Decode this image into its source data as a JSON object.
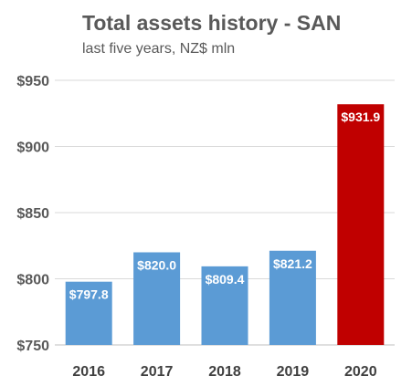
{
  "chart_data": {
    "type": "bar",
    "title": "Total assets history - SAN",
    "subtitle": "last five years, NZ$ mln",
    "categories": [
      "2016",
      "2017",
      "2018",
      "2019",
      "2020"
    ],
    "values": [
      797.8,
      820.0,
      809.4,
      821.2,
      931.9
    ],
    "data_labels": [
      "$797.8",
      "$820.0",
      "$809.4",
      "$821.2",
      "$931.9"
    ],
    "bar_colors": [
      "#5B9BD5",
      "#5B9BD5",
      "#5B9BD5",
      "#5B9BD5",
      "#C00000"
    ],
    "ylim": [
      750,
      950
    ],
    "yticks": [
      750,
      800,
      850,
      900,
      950
    ],
    "ytick_labels": [
      "$750",
      "$800",
      "$850",
      "$900",
      "$950"
    ],
    "xlabel": "",
    "ylabel": "",
    "grid": true,
    "legend": "none"
  }
}
